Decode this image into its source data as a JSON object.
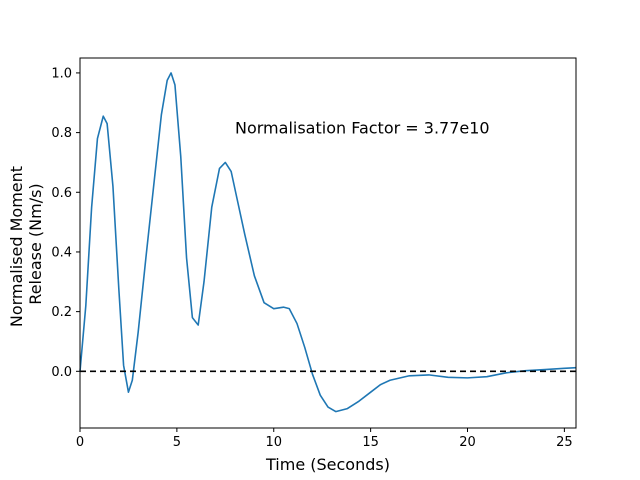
{
  "chart_data": {
    "type": "line",
    "title": "",
    "xlabel": "Time (Seconds)",
    "ylabel_lines": [
      "Normalised Moment",
      "Release (Nm/s)"
    ],
    "xlim": [
      0,
      25.6
    ],
    "ylim": [
      -0.19,
      1.05
    ],
    "xticks": [
      0,
      5,
      10,
      15,
      20,
      25
    ],
    "yticks": [
      0.0,
      0.2,
      0.4,
      0.6,
      0.8,
      1.0
    ],
    "ytick_labels": [
      "0.0",
      "0.2",
      "0.4",
      "0.6",
      "0.8",
      "1.0"
    ],
    "annotation": {
      "text": "Normalisation Factor = 3.77e10",
      "x": 8.0,
      "y": 0.8
    },
    "reference_line": {
      "y": 0.0,
      "style": "dashed",
      "color": "#000000"
    },
    "grid": false,
    "series": [
      {
        "color": "#1f77b4",
        "x": [
          0,
          0.3,
          0.6,
          0.9,
          1.2,
          1.4,
          1.7,
          2.0,
          2.25,
          2.5,
          2.7,
          3.0,
          3.4,
          3.8,
          4.2,
          4.5,
          4.7,
          4.9,
          5.2,
          5.5,
          5.8,
          6.1,
          6.4,
          6.8,
          7.2,
          7.5,
          7.8,
          8.1,
          8.5,
          9.0,
          9.5,
          10.0,
          10.5,
          10.8,
          11.2,
          11.6,
          12.0,
          12.4,
          12.8,
          13.2,
          13.8,
          14.4,
          15.0,
          15.5,
          16.0,
          17.0,
          18.0,
          19.0,
          20.0,
          21.0,
          22.0,
          23.0,
          24.0,
          25.0,
          25.6
        ],
        "y": [
          0.0,
          0.22,
          0.55,
          0.78,
          0.855,
          0.83,
          0.62,
          0.28,
          0.02,
          -0.07,
          -0.03,
          0.13,
          0.38,
          0.62,
          0.86,
          0.975,
          1.0,
          0.96,
          0.72,
          0.38,
          0.18,
          0.155,
          0.3,
          0.55,
          0.68,
          0.7,
          0.67,
          0.58,
          0.46,
          0.32,
          0.23,
          0.21,
          0.215,
          0.21,
          0.16,
          0.08,
          -0.01,
          -0.08,
          -0.12,
          -0.135,
          -0.125,
          -0.1,
          -0.07,
          -0.045,
          -0.03,
          -0.015,
          -0.012,
          -0.02,
          -0.022,
          -0.018,
          -0.005,
          0.002,
          0.006,
          0.01,
          0.012
        ]
      }
    ]
  }
}
